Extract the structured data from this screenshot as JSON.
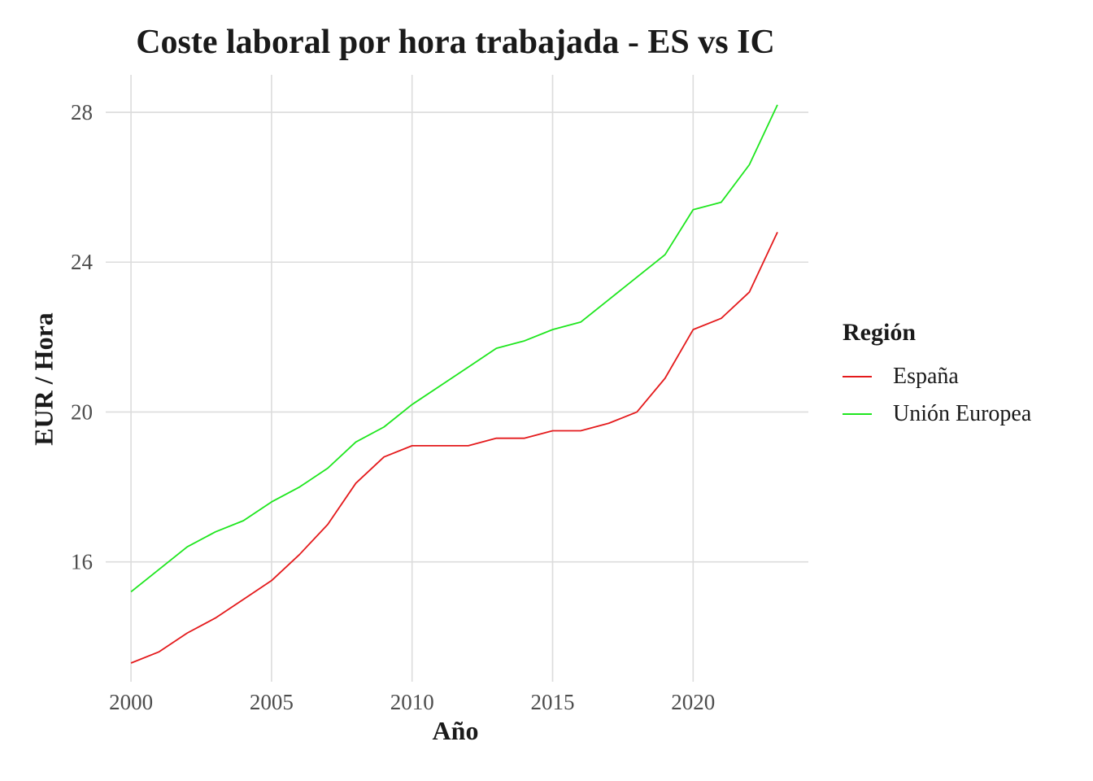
{
  "chart_data": {
    "type": "line",
    "title": "Coste laboral por hora trabajada - ES vs IC",
    "xlabel": "Año",
    "ylabel": "EUR / Hora",
    "xlim": [
      1999.1,
      2024.1
    ],
    "ylim": [
      12.8,
      29.0
    ],
    "x_ticks": [
      2000,
      2005,
      2010,
      2015,
      2020
    ],
    "y_ticks": [
      16,
      20,
      24,
      28
    ],
    "grid": true,
    "legend": {
      "title": "Región",
      "placement": "right"
    },
    "x": [
      2000,
      2001,
      2002,
      2003,
      2004,
      2005,
      2006,
      2007,
      2008,
      2009,
      2010,
      2011,
      2012,
      2013,
      2014,
      2015,
      2016,
      2017,
      2018,
      2019,
      2020,
      2021,
      2022,
      2023
    ],
    "series": [
      {
        "name": "España",
        "color": "#e41a1c",
        "values": [
          13.3,
          13.6,
          14.1,
          14.5,
          15.0,
          15.5,
          16.2,
          17.0,
          18.1,
          18.8,
          19.1,
          19.1,
          19.1,
          19.3,
          19.3,
          19.5,
          19.5,
          19.7,
          20.0,
          20.9,
          22.2,
          22.5,
          23.2,
          24.8
        ]
      },
      {
        "name": "Unión Europea",
        "color": "#1ee61e",
        "values": [
          15.2,
          15.8,
          16.4,
          16.8,
          17.1,
          17.6,
          18.0,
          18.5,
          19.2,
          19.6,
          20.2,
          20.7,
          21.2,
          21.7,
          21.9,
          22.2,
          22.4,
          23.0,
          23.6,
          24.2,
          25.4,
          25.6,
          26.6,
          28.2
        ]
      }
    ]
  }
}
